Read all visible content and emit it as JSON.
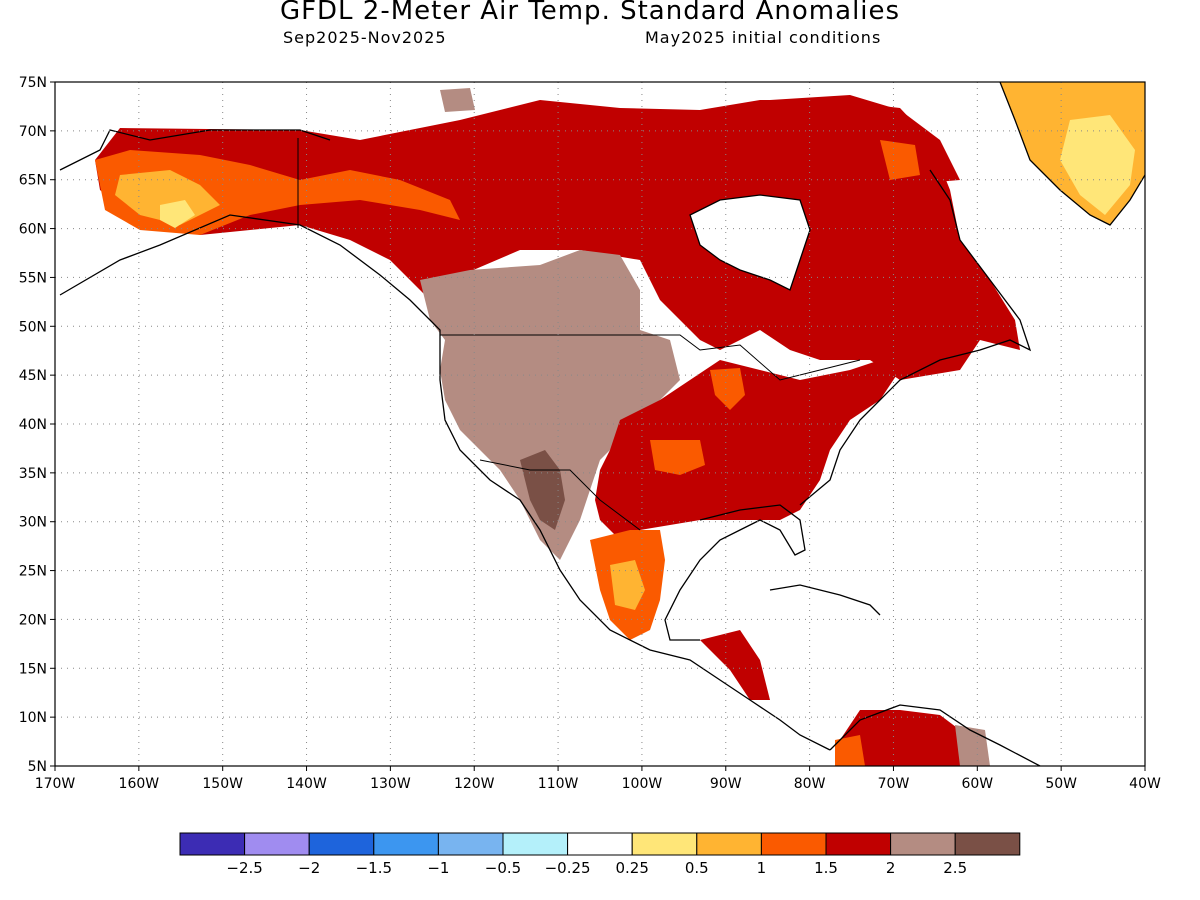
{
  "header": {
    "title": "GFDL 2-Meter Air Temp. Standard Anomalies",
    "period": "Sep2025-Nov2025",
    "init": "May2025 initial conditions"
  },
  "map": {
    "lon_range": [
      -170,
      -40
    ],
    "lat_range": [
      5,
      75
    ],
    "lat_ticks": [
      "75N",
      "70N",
      "65N",
      "60N",
      "55N",
      "50N",
      "45N",
      "40N",
      "35N",
      "30N",
      "25N",
      "20N",
      "15N",
      "10N",
      "5N"
    ],
    "lon_ticks": [
      "170W",
      "160W",
      "150W",
      "140W",
      "130W",
      "120W",
      "110W",
      "100W",
      "90W",
      "80W",
      "70W",
      "60W",
      "50W",
      "40W"
    ]
  },
  "colorbar": {
    "colors": [
      "#3c2cb4",
      "#a08cf0",
      "#1e64dc",
      "#3c96f0",
      "#78b4f0",
      "#b4f0fa",
      "#ffffff",
      "#ffe678",
      "#ffb432",
      "#fa5a00",
      "#c00000",
      "#b48c82",
      "#7a5046"
    ],
    "labels": [
      "-2.5",
      "-2",
      "-1.5",
      "-1",
      "-0.5",
      "-0.25",
      "0.25",
      "0.5",
      "1",
      "1.5",
      "2",
      "2.5"
    ]
  }
}
